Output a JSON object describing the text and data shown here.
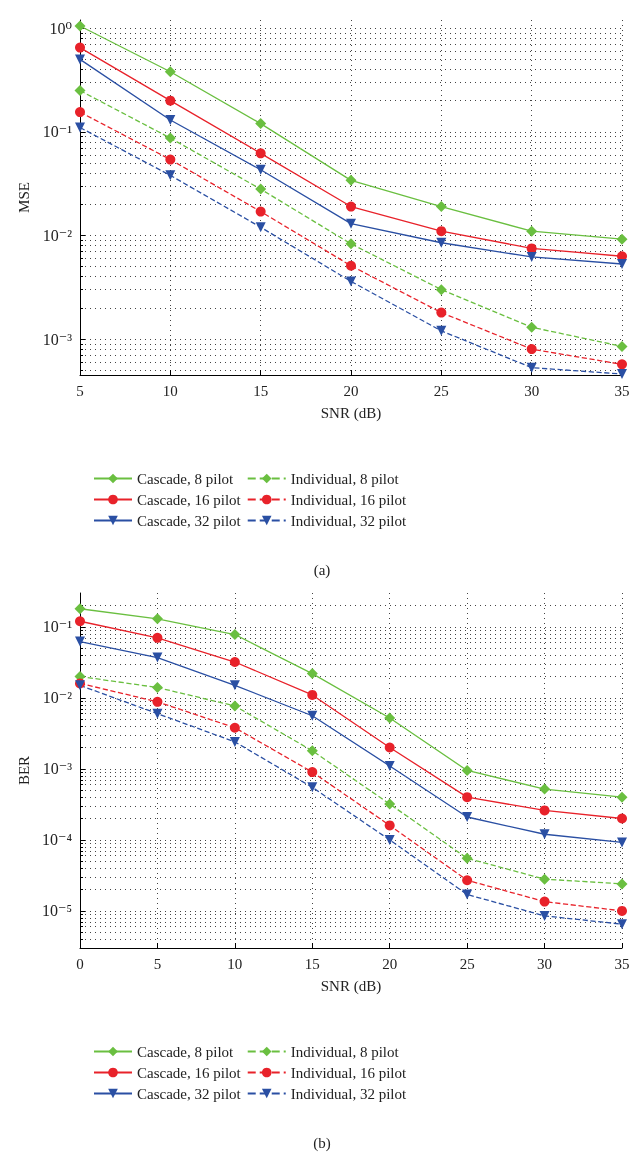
{
  "chart_data": [
    {
      "type": "line",
      "xlabel": "SNR (dB)",
      "ylabel": "MSE",
      "x": [
        5,
        10,
        15,
        20,
        25,
        30,
        35
      ],
      "xlim": [
        5,
        35
      ],
      "xticks": [
        5,
        10,
        15,
        20,
        25,
        30,
        35
      ],
      "ylim": [
        0.00045,
        1.2
      ],
      "yticks": [
        {
          "value": 1,
          "label": "10⁰"
        },
        {
          "value": 0.1,
          "label": "10⁻¹"
        },
        {
          "value": 0.01,
          "label": "10⁻²"
        },
        {
          "value": 0.001,
          "label": "10⁻³"
        }
      ],
      "log": "y",
      "grid": true,
      "legend": "bottom",
      "annotations": [
        "(a)"
      ],
      "series": [
        {
          "name": "Cascade, 8 pilot",
          "color": "#6abf40",
          "marker": "diamond",
          "line_style": "solid",
          "values": [
            1.05,
            0.38,
            0.12,
            0.034,
            0.019,
            0.011,
            0.0092
          ]
        },
        {
          "name": "Cascade, 16 pilot",
          "color": "#e8222a",
          "marker": "circle",
          "line_style": "solid",
          "values": [
            0.65,
            0.2,
            0.062,
            0.019,
            0.011,
            0.0075,
            0.0063
          ]
        },
        {
          "name": "Cascade, 32 pilot",
          "color": "#2a4fa3",
          "marker": "triangle",
          "line_style": "solid",
          "values": [
            0.5,
            0.13,
            0.043,
            0.013,
            0.0085,
            0.0062,
            0.0053
          ]
        },
        {
          "name": "Individual, 8 pilot",
          "color": "#6abf40",
          "marker": "diamond",
          "line_style": "dashed",
          "values": [
            0.25,
            0.087,
            0.028,
            0.0083,
            0.003,
            0.0013,
            0.00085
          ]
        },
        {
          "name": "Individual, 16 pilot",
          "color": "#e8222a",
          "marker": "circle",
          "line_style": "dashed",
          "values": [
            0.155,
            0.054,
            0.017,
            0.0051,
            0.0018,
            0.0008,
            0.00057
          ]
        },
        {
          "name": "Individual, 32 pilot",
          "color": "#2a4fa3",
          "marker": "triangle",
          "line_style": "dashed",
          "values": [
            0.11,
            0.038,
            0.012,
            0.0036,
            0.0012,
            0.00053,
            0.00046
          ]
        }
      ]
    },
    {
      "type": "line",
      "xlabel": "SNR (dB)",
      "ylabel": "BER",
      "x": [
        0,
        5,
        10,
        15,
        20,
        25,
        30,
        35
      ],
      "xlim": [
        0,
        35
      ],
      "xticks": [
        0,
        5,
        10,
        15,
        20,
        25,
        30,
        35
      ],
      "ylim": [
        3e-06,
        0.3
      ],
      "yticks": [
        {
          "value": 0.1,
          "label": "10⁻¹"
        },
        {
          "value": 0.01,
          "label": "10⁻²"
        },
        {
          "value": 0.001,
          "label": "10⁻³"
        },
        {
          "value": 0.0001,
          "label": "10⁻⁴"
        },
        {
          "value": 1e-05,
          "label": "10⁻⁵"
        }
      ],
      "log": "y",
      "grid": true,
      "legend": "bottom",
      "annotations": [
        "(b)"
      ],
      "series": [
        {
          "name": "Cascade, 8 pilot",
          "color": "#6abf40",
          "marker": "diamond",
          "line_style": "solid",
          "values": [
            0.18,
            0.13,
            0.078,
            0.022,
            0.0052,
            0.00095,
            0.00052,
            0.0004
          ]
        },
        {
          "name": "Cascade, 16 pilot",
          "color": "#e8222a",
          "marker": "circle",
          "line_style": "solid",
          "values": [
            0.12,
            0.07,
            0.032,
            0.011,
            0.002,
            0.0004,
            0.00026,
            0.0002
          ]
        },
        {
          "name": "Cascade, 32 pilot",
          "color": "#2a4fa3",
          "marker": "triangle",
          "line_style": "solid",
          "values": [
            0.062,
            0.037,
            0.015,
            0.0056,
            0.0011,
            0.00021,
            0.00012,
            9.2e-05
          ]
        },
        {
          "name": "Individual, 8 pilot",
          "color": "#6abf40",
          "marker": "diamond",
          "line_style": "dashed",
          "values": [
            0.02,
            0.014,
            0.0077,
            0.0018,
            0.00032,
            5.5e-05,
            2.8e-05,
            2.4e-05
          ]
        },
        {
          "name": "Individual, 16 pilot",
          "color": "#e8222a",
          "marker": "circle",
          "line_style": "dashed",
          "values": [
            0.016,
            0.0088,
            0.0038,
            0.0009,
            0.00016,
            2.7e-05,
            1.35e-05,
            1e-05
          ]
        },
        {
          "name": "Individual, 32 pilot",
          "color": "#2a4fa3",
          "marker": "triangle",
          "line_style": "dashed",
          "values": [
            0.015,
            0.006,
            0.0024,
            0.00055,
            0.0001,
            1.7e-05,
            8.5e-06,
            6.5e-06
          ]
        }
      ]
    }
  ]
}
